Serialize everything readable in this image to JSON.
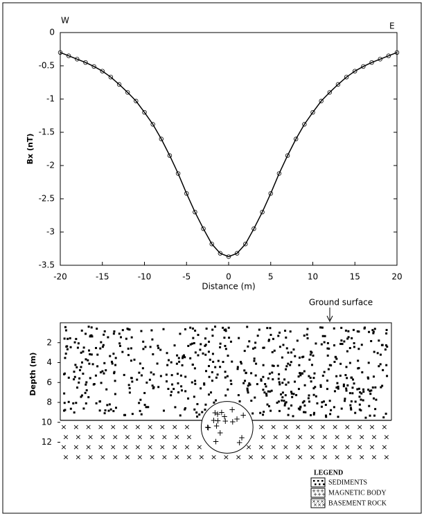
{
  "chart_data": [
    {
      "type": "line",
      "marker": "circle",
      "color": "#000000",
      "labels": {
        "left": "W",
        "right": "E"
      },
      "xlabel": "Distance (m)",
      "ylabel": "Bx (nT)",
      "x": [
        -20,
        -19,
        -18,
        -17,
        -16,
        -15,
        -14,
        -13,
        -12,
        -11,
        -10,
        -9,
        -8,
        -7,
        -6,
        -5,
        -4,
        -3,
        -2,
        -1,
        0,
        1,
        2,
        3,
        4,
        5,
        6,
        7,
        8,
        9,
        10,
        11,
        12,
        13,
        14,
        15,
        16,
        17,
        18,
        19,
        20
      ],
      "series": [
        {
          "values": [
            -0.3,
            -0.35,
            -0.4,
            -0.45,
            -0.51,
            -0.58,
            -0.67,
            -0.78,
            -0.9,
            -1.03,
            -1.2,
            -1.38,
            -1.6,
            -1.85,
            -2.12,
            -2.42,
            -2.7,
            -2.95,
            -3.18,
            -3.32,
            -3.37,
            -3.32,
            -3.18,
            -2.95,
            -2.7,
            -2.42,
            -2.12,
            -1.85,
            -1.6,
            -1.38,
            -1.2,
            -1.03,
            -0.9,
            -0.78,
            -0.67,
            -0.58,
            -0.51,
            -0.45,
            -0.4,
            -0.35,
            -0.3
          ]
        }
      ],
      "xlim": [
        -20,
        20
      ],
      "xticks": [
        -20,
        -15,
        -10,
        -5,
        0,
        5,
        10,
        15,
        20
      ],
      "ylim": [
        -3.5,
        0
      ],
      "yticks": [
        0,
        -0.5,
        -1,
        -1.5,
        -2,
        -2.5,
        -3,
        -3.5
      ]
    },
    {
      "type": "section",
      "annotation": "Ground surface",
      "ylabel": "Depth (m)",
      "xlim": [
        -20,
        19.7
      ],
      "ylim": [
        0,
        14.4
      ],
      "yticks": [
        2,
        4,
        6,
        8,
        10,
        12
      ],
      "y_inverted": true,
      "interface_depth": 9.8,
      "body": {
        "x": 0,
        "depth": 10.5,
        "radius": 2.6
      },
      "legend": {
        "title": "LEGEND",
        "items": [
          "SEDIMENTS",
          "MAGNETIC BODY",
          "BASEMENT ROCK"
        ]
      }
    }
  ]
}
